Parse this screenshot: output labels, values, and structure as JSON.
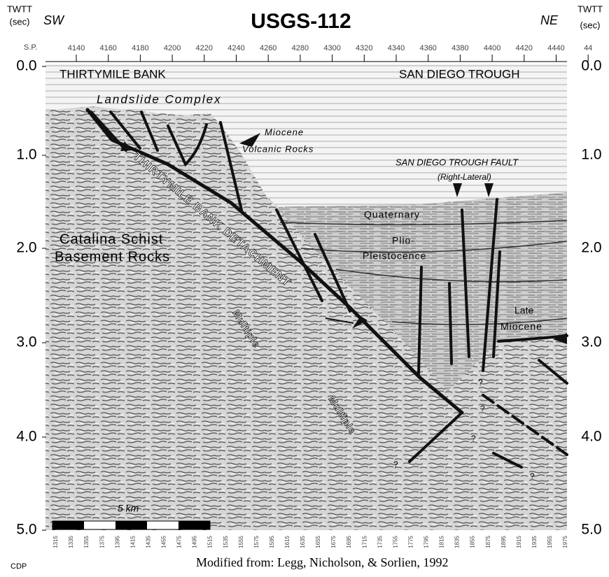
{
  "header": {
    "title": "USGS-112",
    "left_side": "SW",
    "right_side": "NE"
  },
  "left_axis": {
    "title": "TWTT",
    "unit": "(sec)",
    "ticks": [
      "0.0",
      "1.0",
      "2.0",
      "3.0",
      "4.0",
      "5.0"
    ]
  },
  "right_axis": {
    "title": "TWTT",
    "unit": "(sec)",
    "ticks": [
      "0.0",
      "1.0",
      "2.0",
      "3.0",
      "4.0",
      "5.0"
    ]
  },
  "shotpoints": {
    "label": "S.P.",
    "ticks": [
      "4140",
      "4160",
      "4180",
      "4200",
      "4220",
      "4240",
      "4260",
      "4280",
      "4300",
      "4320",
      "4340",
      "4360",
      "4380",
      "4400",
      "4420",
      "4440",
      "44"
    ]
  },
  "cdp": {
    "label": "CDP",
    "ticks": [
      "1315",
      "1335",
      "1355",
      "1375",
      "1395",
      "1415",
      "1435",
      "1455",
      "1475",
      "1495",
      "1515",
      "1535",
      "1555",
      "1575",
      "1595",
      "1615",
      "1635",
      "1655",
      "1675",
      "1695",
      "1715",
      "1735",
      "1755",
      "1775",
      "1795",
      "1815",
      "1835",
      "1855",
      "1875",
      "1895",
      "1915",
      "1935",
      "1955",
      "1975"
    ]
  },
  "annotations": [
    "THIRTYMILE BANK",
    "SAN DIEGO TROUGH",
    "Landslide Complex",
    "Miocene",
    "Volcanic Rocks",
    "SAN DIEGO TROUGH FAULT",
    "(Right-Lateral)",
    "Quaternary",
    "Plio-",
    "Pleistocence",
    "Late",
    "Miocene",
    "Catalina Schist",
    "Basement Rocks",
    "THIRTYMILE BANK DETACHMENT",
    "Multiple",
    "Multiple",
    "5 km",
    "?",
    "?",
    "?",
    "?",
    "?"
  ],
  "credit": "Modified from: Legg, Nicholson, & Sorlien, 1992"
}
